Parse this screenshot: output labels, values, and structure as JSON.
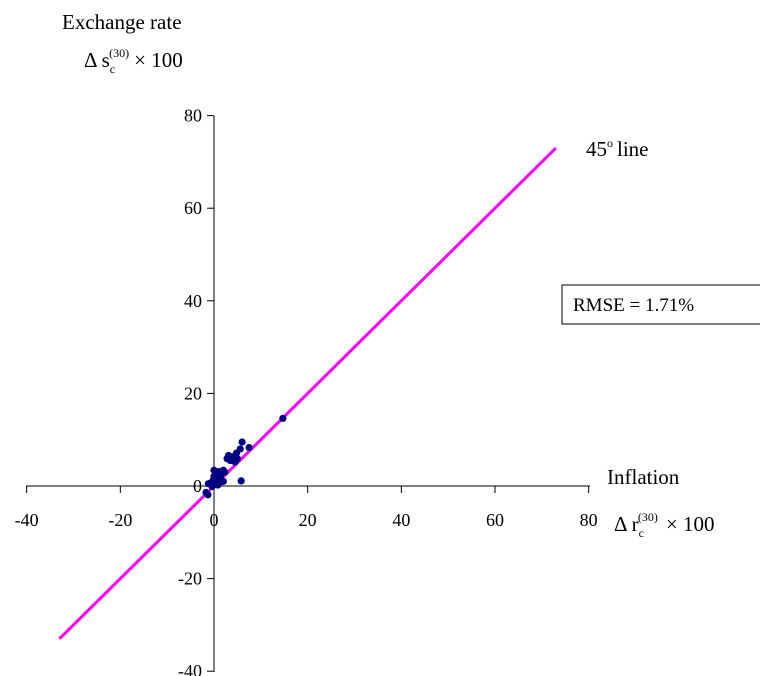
{
  "chart_data": {
    "type": "scatter",
    "xlim": [
      -40,
      80
    ],
    "ylim": [
      -40,
      80
    ],
    "x_ticks": [
      "-40",
      "-20",
      "0",
      "20",
      "40",
      "60",
      "80"
    ],
    "y_ticks": [
      "80",
      "60",
      "40",
      "20",
      "0",
      "-20",
      "-40"
    ],
    "xlabel": {
      "title": "Inflation",
      "symbol": "Δ r",
      "subscript": "c",
      "superscript": "(30)",
      "suffix": "× 100"
    },
    "ylabel": {
      "title": "Exchange rate",
      "symbol": "Δ s",
      "subscript": "c",
      "superscript": "(30)",
      "suffix": "× 100"
    },
    "annotations": {
      "line_label": "45",
      "line_label_sup": "o",
      "line_label_suffix": "line",
      "rmse": "RMSE = 1.71%"
    },
    "reference_line": {
      "from": [
        -33,
        -33
      ],
      "to": [
        73,
        73
      ],
      "color": "#ff00ff"
    },
    "point_color": "#000080",
    "grid": false,
    "points": [
      [
        14.7,
        14.6
      ],
      [
        6.0,
        9.5
      ],
      [
        7.5,
        8.3
      ],
      [
        5.6,
        8.0
      ],
      [
        4.8,
        7.1
      ],
      [
        3.1,
        6.6
      ],
      [
        4.0,
        6.3
      ],
      [
        2.8,
        5.9
      ],
      [
        5.0,
        5.9
      ],
      [
        3.5,
        5.5
      ],
      [
        4.5,
        5.2
      ],
      [
        2.0,
        3.4
      ],
      [
        0.0,
        3.4
      ],
      [
        1.0,
        3.1
      ],
      [
        2.3,
        3.0
      ],
      [
        0.0,
        2.1
      ],
      [
        1.4,
        2.0
      ],
      [
        0.5,
        1.8
      ],
      [
        0.9,
        1.4
      ],
      [
        5.8,
        1.1
      ],
      [
        2.0,
        1.0
      ],
      [
        0.2,
        0.8
      ],
      [
        -0.8,
        0.6
      ],
      [
        -1.2,
        0.5
      ],
      [
        -0.4,
        -0.1
      ],
      [
        -1.7,
        -1.4
      ],
      [
        -1.3,
        -1.9
      ],
      [
        0.8,
        0.2
      ],
      [
        1.5,
        0.9
      ],
      [
        -0.2,
        1.2
      ]
    ]
  }
}
